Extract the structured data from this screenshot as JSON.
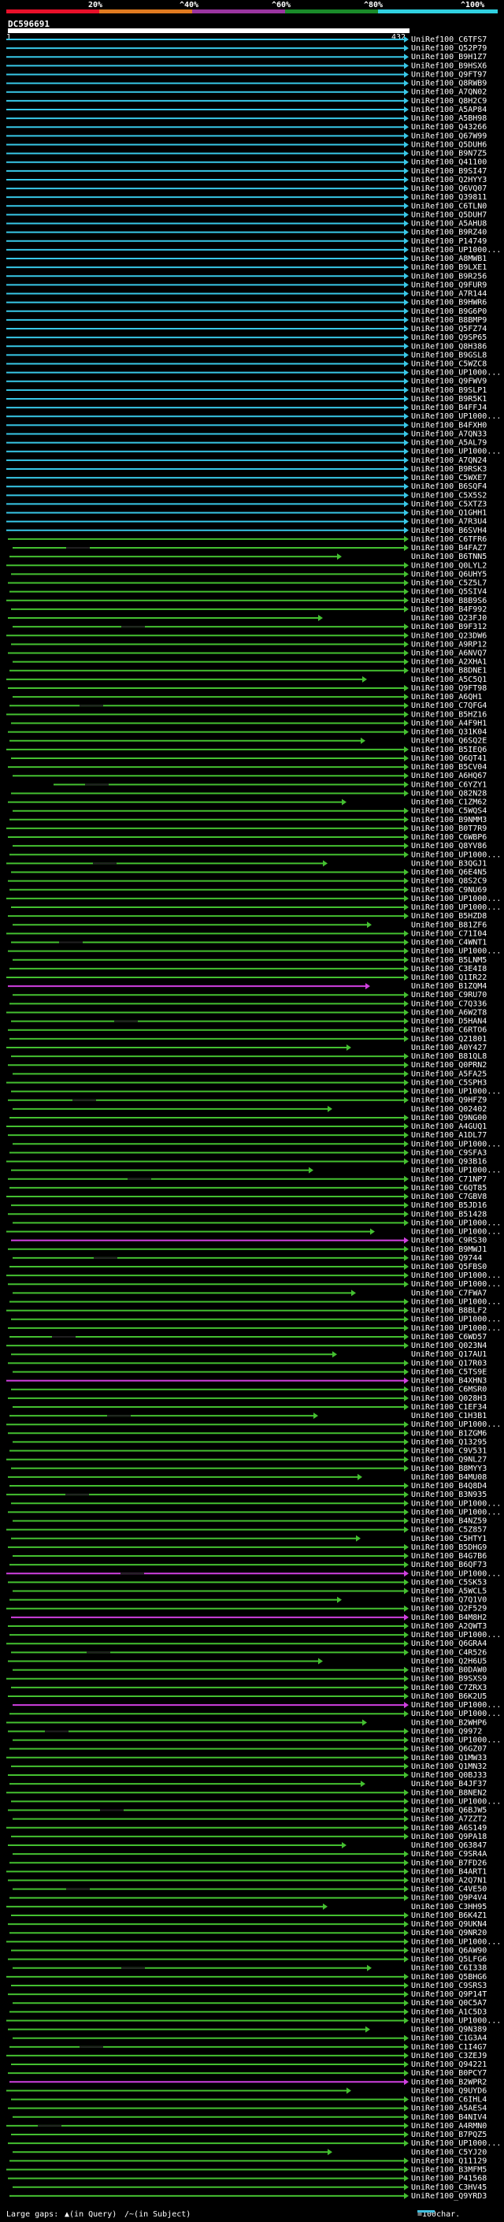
{
  "title": "DC596691",
  "ruler": {
    "start": "1",
    "end": "432"
  },
  "scale": {
    "labels": [
      "20%",
      "^40%",
      "^60%",
      "^80%",
      "^100%"
    ],
    "colors": [
      "#e8102a",
      "#e07a20",
      "#9a35a0",
      "#1a8a2a",
      "#30d0e0",
      "#44c030"
    ]
  },
  "colors": {
    "cyan": "#38c8e8",
    "green": "#44c030",
    "magenta": "#d040e0",
    "gap": "#202020"
  },
  "legend": {
    "large_gaps": "Large gaps:",
    "in_query": "(in Query)",
    "in_subject": "(in Subject)",
    "scale_note": "=100char."
  },
  "hits": [
    "UniRef100_C6TFS7",
    "UniRef100_Q52P79",
    "UniRef100_B9H1Z7",
    "UniRef100_B9HSX6",
    "UniRef100_Q9FT97",
    "UniRef100_Q8RWB9",
    "UniRef100_A7QN02",
    "UniRef100_Q8H2C9",
    "UniRef100_A5AP84",
    "UniRef100_A5BH98",
    "UniRef100_Q43266",
    "UniRef100_Q67W99",
    "UniRef100_Q5DUH6",
    "UniRef100_B9N7Z5",
    "UniRef100_Q41100",
    "UniRef100_B9SI47",
    "UniRef100_Q2HYY3",
    "UniRef100_Q6VQ07",
    "UniRef100_Q39811",
    "UniRef100_C6TLN0",
    "UniRef100_Q5DUH7",
    "UniRef100_A5AHU8",
    "UniRef100_B9RZ40",
    "UniRef100_P14749",
    "UniRef100_UP1000...",
    "UniRef100_A8MWB1",
    "UniRef100_B9LXE1",
    "UniRef100_B9R256",
    "UniRef100_Q9FUR9",
    "UniRef100_A7R144",
    "UniRef100_B9HWR6",
    "UniRef100_B9G6P0",
    "UniRef100_B8BMP9",
    "UniRef100_Q5FZ74",
    "UniRef100_Q9SP65",
    "UniRef100_Q8H386",
    "UniRef100_B9GSL8",
    "UniRef100_C5WZC8",
    "UniRef100_UP1000...",
    "UniRef100_Q9FWV9",
    "UniRef100_B9SLP1",
    "UniRef100_B9R5K1",
    "UniRef100_B4FFJ4",
    "UniRef100_UP1000...",
    "UniRef100_B4FXH0",
    "UniRef100_A7QN33",
    "UniRef100_A5AL79",
    "UniRef100_UP1000...",
    "UniRef100_A7QN24",
    "UniRef100_B9RSK3",
    "UniRef100_C5WXE7",
    "UniRef100_B6SQF4",
    "UniRef100_C5X5S2",
    "UniRef100_C5XTZ3",
    "UniRef100_Q1GHH1",
    "UniRef100_A7R3U4",
    "UniRef100_B6SVH4",
    "UniRef100_C6TFR6",
    "UniRef100_B4FAZ7",
    "UniRef100_B6TNN5",
    "UniRef100_Q0LYL2",
    "UniRef100_Q6UHY5",
    "UniRef100_C5Z5L7",
    "UniRef100_Q5SIV4",
    "UniRef100_B8B9S6",
    "UniRef100_B4F992",
    "UniRef100_Q23FJ0",
    "UniRef100_B9F312",
    "UniRef100_Q23DW6",
    "UniRef100_A9RP12",
    "UniRef100_A6NVQ7",
    "UniRef100_A2XHA1",
    "UniRef100_B8DNE1",
    "UniRef100_A5C5Q1",
    "UniRef100_Q9FT98",
    "UniRef100_A6QH1",
    "UniRef100_C7QFG4",
    "UniRef100_B5HZ16",
    "UniRef100_A4F9H1",
    "UniRef100_Q31K04",
    "UniRef100_Q6SQ2E",
    "UniRef100_B5IEQ6",
    "UniRef100_Q6QT41",
    "UniRef100_B5CV04",
    "UniRef100_A6HQ67",
    "UniRef100_C6YZY1",
    "UniRef100_Q82N28",
    "UniRef100_C1ZM62",
    "UniRef100_C5WQS4",
    "UniRef100_B9NMM3",
    "UniRef100_B0T7R9",
    "UniRef100_C6WBP6",
    "UniRef100_Q8YV86",
    "UniRef100_UP1000...",
    "UniRef100_B3QGJ1",
    "UniRef100_Q6E4N5",
    "UniRef100_Q8S2C9",
    "UniRef100_C9NU69",
    "UniRef100_UP1000...",
    "UniRef100_UP1000...",
    "UniRef100_B5HZD8",
    "UniRef100_B81ZF6",
    "UniRef100_C71I04",
    "UniRef100_C4WNT1",
    "UniRef100_UP1000...",
    "UniRef100_B5LNM5",
    "UniRef100_C3E4I8",
    "UniRef100_Q1IR22",
    "UniRef100_B1ZQM4",
    "UniRef100_C9RU70",
    "UniRef100_C7Q336",
    "UniRef100_A6W2T8",
    "UniRef100_D5HAN4",
    "UniRef100_C6RTO6",
    "UniRef100_Q21801",
    "UniRef100_A0Y427",
    "UniRef100_B81QL8",
    "UniRef100_Q0PRN2",
    "UniRef100_A5FA25",
    "UniRef100_C5SPH3",
    "UniRef100_UP1000...",
    "UniRef100_Q9HFZ9",
    "UniRef100_Q02402",
    "UniRef100_Q9NG00",
    "UniRef100_A4GUQ1",
    "UniRef100_A1DL77",
    "UniRef100_UP1000...",
    "UniRef100_C9SFA3",
    "UniRef100_Q93B16",
    "UniRef100_UP1000...",
    "UniRef100_C71NP7",
    "UniRef100_C6QT85",
    "UniRef100_C7GBV8",
    "UniRef100_B5JD16",
    "UniRef100_B51428",
    "UniRef100_UP1000...",
    "UniRef100_UP1000...",
    "UniRef100_C9RS30",
    "UniRef100_B9MWJ1",
    "UniRef100_Q9744",
    "UniRef100_Q5FBS0",
    "UniRef100_UP1000...",
    "UniRef100_UP1000...",
    "UniRef100_C7FWA7",
    "UniRef100_UP1000...",
    "UniRef100_B8BLF2",
    "UniRef100_UP1000...",
    "UniRef100_UP1000...",
    "UniRef100_C6WD57",
    "UniRef100_Q023N4",
    "UniRef100_Q17AU1",
    "UniRef100_Q17R03",
    "UniRef100_C5TS9E",
    "UniRef100_B4XHN3",
    "UniRef100_C6MSR0",
    "UniRef100_Q028H3",
    "UniRef100_C1EF34",
    "UniRef100_C1H3B1",
    "UniRef100_UP1000...",
    "UniRef100_B1ZGM6",
    "UniRef100_Q13295",
    "UniRef100_C9V531",
    "UniRef100_Q9NL27",
    "UniRef100_B8MYY3",
    "UniRef100_B4MU08",
    "UniRef100_B4Q8D4",
    "UniRef100_B3N935",
    "UniRef100_UP1000...",
    "UniRef100_UP1000...",
    "UniRef100_B4NZ59",
    "UniRef100_C5Z857",
    "UniRef100_C5HTY1",
    "UniRef100_B5DHG9",
    "UniRef100_B4G7B6",
    "UniRef100_B6QF73",
    "UniRef100_UP1000...",
    "UniRef100_C5SK53",
    "UniRef100_A5WCL5",
    "UniRef100_Q7Q1V0",
    "UniRef100_Q2F529",
    "UniRef100_B4M8H2",
    "UniRef100_A2QWT3",
    "UniRef100_UP1000...",
    "UniRef100_Q6GRA4",
    "UniRef100_C4R526",
    "UniRef100_Q2H6U5",
    "UniRef100_B0DAW0",
    "UniRef100_B9SXS9",
    "UniRef100_C7ZRX3",
    "UniRef100_B6K2U5",
    "UniRef100_UP1000...",
    "UniRef100_UP1000...",
    "UniRef100_B2WHP6",
    "UniRef100_Q9972",
    "UniRef100_UP1000...",
    "UniRef100_Q6GZ07",
    "UniRef100_Q1MW33",
    "UniRef100_Q1MN32",
    "UniRef100_Q0BJ33",
    "UniRef100_B4JF37",
    "UniRef100_B8NEN2",
    "UniRef100_UP1000...",
    "UniRef100_Q6BJW5",
    "UniRef100_A7ZZT2",
    "UniRef100_A6S149",
    "UniRef100_Q9PA18",
    "UniRef100_Q63847",
    "UniRef100_C9SR4A",
    "UniRef100_B7FD26",
    "UniRef100_B4ART1",
    "UniRef100_A2Q7N1",
    "UniRef100_C4VE50",
    "UniRef100_Q9P4V4",
    "UniRef100_C3HH95",
    "UniRef100_B6K4Z1",
    "UniRef100_Q9UKN4",
    "UniRef100_Q9NR20",
    "UniRef100_UP1000...",
    "UniRef100_Q6AW90",
    "UniRef100_Q5LFG6",
    "UniRef100_C6I338",
    "UniRef100_Q5BHG6",
    "UniRef100_C9SRS3",
    "UniRef100_Q9P14T",
    "UniRef100_Q0C5A7",
    "UniRef100_A1C5D3",
    "UniRef100_UP1000...",
    "UniRef100_Q9N389",
    "UniRef100_C1G3A4",
    "UniRef100_C1I4G7",
    "UniRef100_C3ZEJ9",
    "UniRef100_Q94221",
    "UniRef100_B0PCY7",
    "UniRef100_B2WPR2",
    "UniRef100_Q9UYD6",
    "UniRef100_C6IHL4",
    "UniRef100_A5AES4",
    "UniRef100_B4NIV4",
    "UniRef100_A4RMN0",
    "UniRef100_B7PQZ5",
    "UniRef100_UP1000...",
    "UniRef100_C5YJ20",
    "UniRef100_Q11129",
    "UniRef100_B3MFM5",
    "UniRef100_P41568",
    "UniRef100_C3HV45",
    "UniRef100_Q9YRD3"
  ]
}
